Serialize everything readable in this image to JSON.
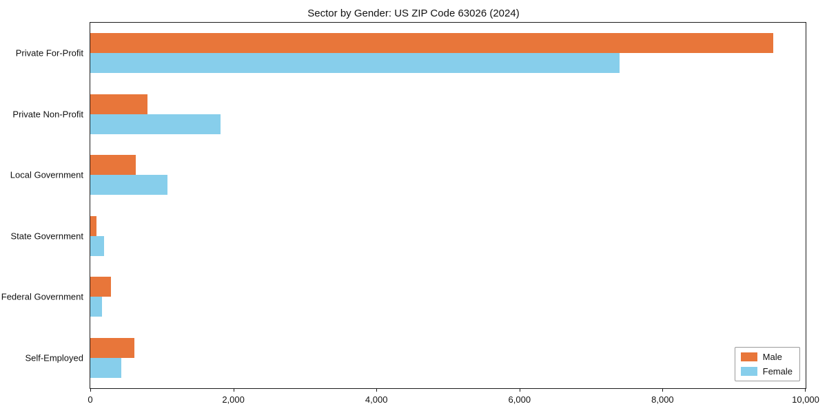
{
  "chart_data": {
    "type": "bar",
    "orientation": "horizontal",
    "title": "Sector by Gender: US ZIP Code 63026 (2024)",
    "categories": [
      "Private For-Profit",
      "Private Non-Profit",
      "Local Government",
      "State Government",
      "Federal Government",
      "Self-Employed"
    ],
    "series": [
      {
        "name": "Male",
        "color": "#e8763a",
        "values": [
          9550,
          800,
          640,
          90,
          290,
          620
        ]
      },
      {
        "name": "Female",
        "color": "#87ceeb",
        "values": [
          7400,
          1820,
          1080,
          190,
          160,
          430
        ]
      }
    ],
    "xlabel": "",
    "ylabel": "",
    "xlim": [
      0,
      10000
    ],
    "xticks": [
      {
        "value": 0,
        "label": "0"
      },
      {
        "value": 2000,
        "label": "2,000"
      },
      {
        "value": 4000,
        "label": "4,000"
      },
      {
        "value": 6000,
        "label": "6,000"
      },
      {
        "value": 8000,
        "label": "8,000"
      },
      {
        "value": 10000,
        "label": "10,000"
      }
    ],
    "grid": false,
    "legend_position": "lower right"
  }
}
